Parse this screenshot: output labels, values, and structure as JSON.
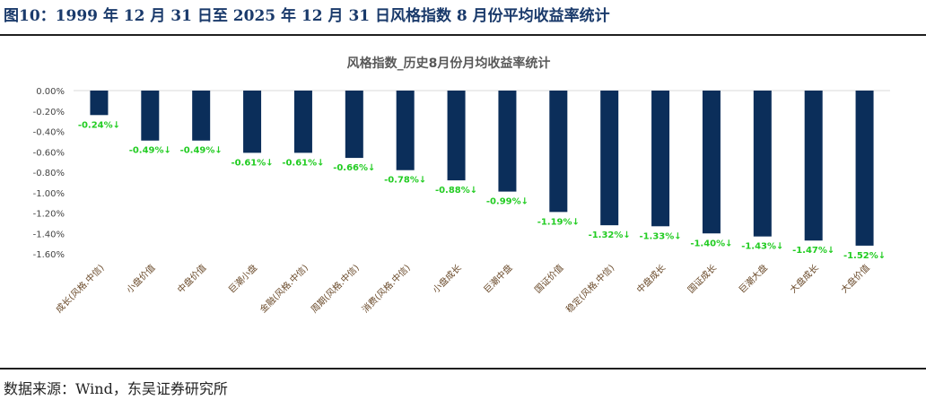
{
  "figure": {
    "title": "图10：1999 年 12 月 31 日至 2025 年 12 月 31 日风格指数 8 月份平均收益率统计",
    "source": "数据来源：Wind，东吴证券研究所"
  },
  "colors": {
    "bar": "#0b2e5a",
    "label": "#22cc22",
    "axis_text": "#444444",
    "cat_text": "#6a4a2a",
    "title": "#595959",
    "gridline": "#d9d9d9"
  },
  "chart_data": {
    "type": "bar",
    "title": "风格指数_历史8月份月均收益率统计",
    "categories": [
      "成长(风格.中信)",
      "小盘价值",
      "中盘价值",
      "巨潮小盘",
      "金融(风格.中信)",
      "周期(风格.中信)",
      "消费(风格.中信)",
      "小盘成长",
      "巨潮中盘",
      "国证价值",
      "稳定(风格.中信)",
      "中盘成长",
      "国证成长",
      "巨潮大盘",
      "大盘成长",
      "大盘价值"
    ],
    "values": [
      -0.24,
      -0.49,
      -0.49,
      -0.61,
      -0.61,
      -0.66,
      -0.78,
      -0.88,
      -0.99,
      -1.19,
      -1.32,
      -1.33,
      -1.4,
      -1.43,
      -1.47,
      -1.52
    ],
    "data_labels": [
      "-0.24%↓",
      "-0.49%↓",
      "-0.49%↓",
      "-0.61%↓",
      "-0.61%↓",
      "-0.66%↓",
      "-0.78%↓",
      "-0.88%↓",
      "-0.99%↓",
      "-1.19%↓",
      "-1.32%↓",
      "-1.33%↓",
      "-1.40%↓",
      "-1.43%↓",
      "-1.47%↓",
      "-1.52%↓"
    ],
    "ylim": [
      -1.6,
      0
    ],
    "yticks": [
      0,
      -0.2,
      -0.4,
      -0.6,
      -0.8,
      -1.0,
      -1.2,
      -1.4,
      -1.6
    ],
    "ytick_labels": [
      "0.00%",
      "-0.20%",
      "-0.40%",
      "-0.60%",
      "-0.80%",
      "-1.00%",
      "-1.20%",
      "-1.40%",
      "-1.60%"
    ],
    "xlabel": "",
    "ylabel": "",
    "legend": "none",
    "grid": false
  }
}
